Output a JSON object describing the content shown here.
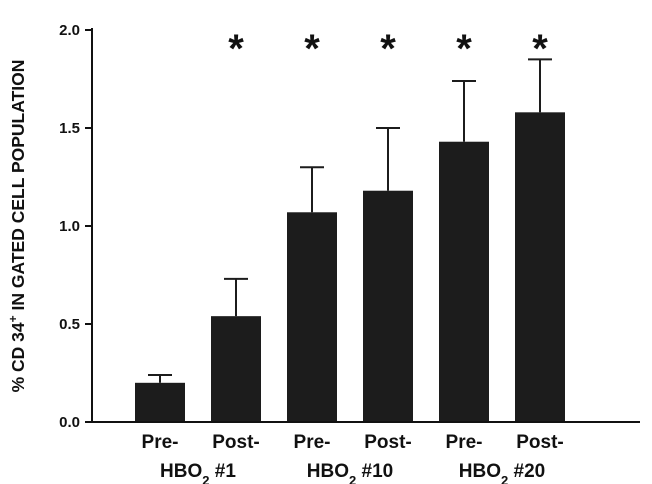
{
  "chart_data": {
    "type": "bar",
    "categories": [
      "Pre-",
      "Post-",
      "Pre-",
      "Post-",
      "Pre-",
      "Post-"
    ],
    "values": [
      0.2,
      0.54,
      1.07,
      1.18,
      1.43,
      1.58
    ],
    "errors": [
      0.04,
      0.19,
      0.23,
      0.32,
      0.31,
      0.27
    ],
    "significance": [
      "",
      "*",
      "*",
      "*",
      "*",
      "*"
    ],
    "groups": [
      {
        "label_prefix": "HBO",
        "label_sub": "2",
        "label_suffix": " #1"
      },
      {
        "label_prefix": "HBO",
        "label_sub": "2",
        "label_suffix": " #10"
      },
      {
        "label_prefix": "HBO",
        "label_sub": "2",
        "label_suffix": " #20"
      }
    ],
    "ylabel": {
      "pre": "% CD 34",
      "sup": "+",
      "post": " IN GATED CELL POPULATION"
    },
    "ylim": [
      0,
      2.0
    ],
    "yticks": [
      0,
      0.5,
      1.0,
      1.5,
      2.0
    ],
    "ytick_labels": [
      "0.0",
      "0.5",
      "1.0",
      "1.5",
      "2.0"
    ],
    "bar_color": "#1c1c1c",
    "axis_color": "#111111",
    "grid": false
  }
}
